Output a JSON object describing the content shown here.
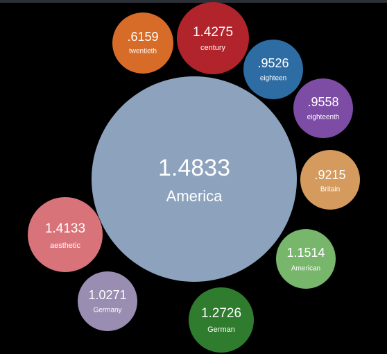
{
  "bubbles": [
    {
      "value": "1.4833",
      "label": "America",
      "color": "#8da2bd",
      "role": "center"
    },
    {
      "value": ".6159",
      "label": "twentieth",
      "color": "#d66c28"
    },
    {
      "value": "1.4275",
      "label": "century",
      "color": "#b2242c"
    },
    {
      "value": ".9526",
      "label": "eighteen",
      "color": "#2e6da4"
    },
    {
      "value": ".9558",
      "label": "eighteenth",
      "color": "#7d4ca5"
    },
    {
      "value": ".9215",
      "label": "Britain",
      "color": "#d49a5e"
    },
    {
      "value": "1.1514",
      "label": "American",
      "color": "#77b66b"
    },
    {
      "value": "1.2726",
      "label": "German",
      "color": "#2f7c2e"
    },
    {
      "value": "1.0271",
      "label": "Germany",
      "color": "#9a8db2"
    },
    {
      "value": "1.4133",
      "label": "aesthetic",
      "color": "#d8737a"
    }
  ]
}
